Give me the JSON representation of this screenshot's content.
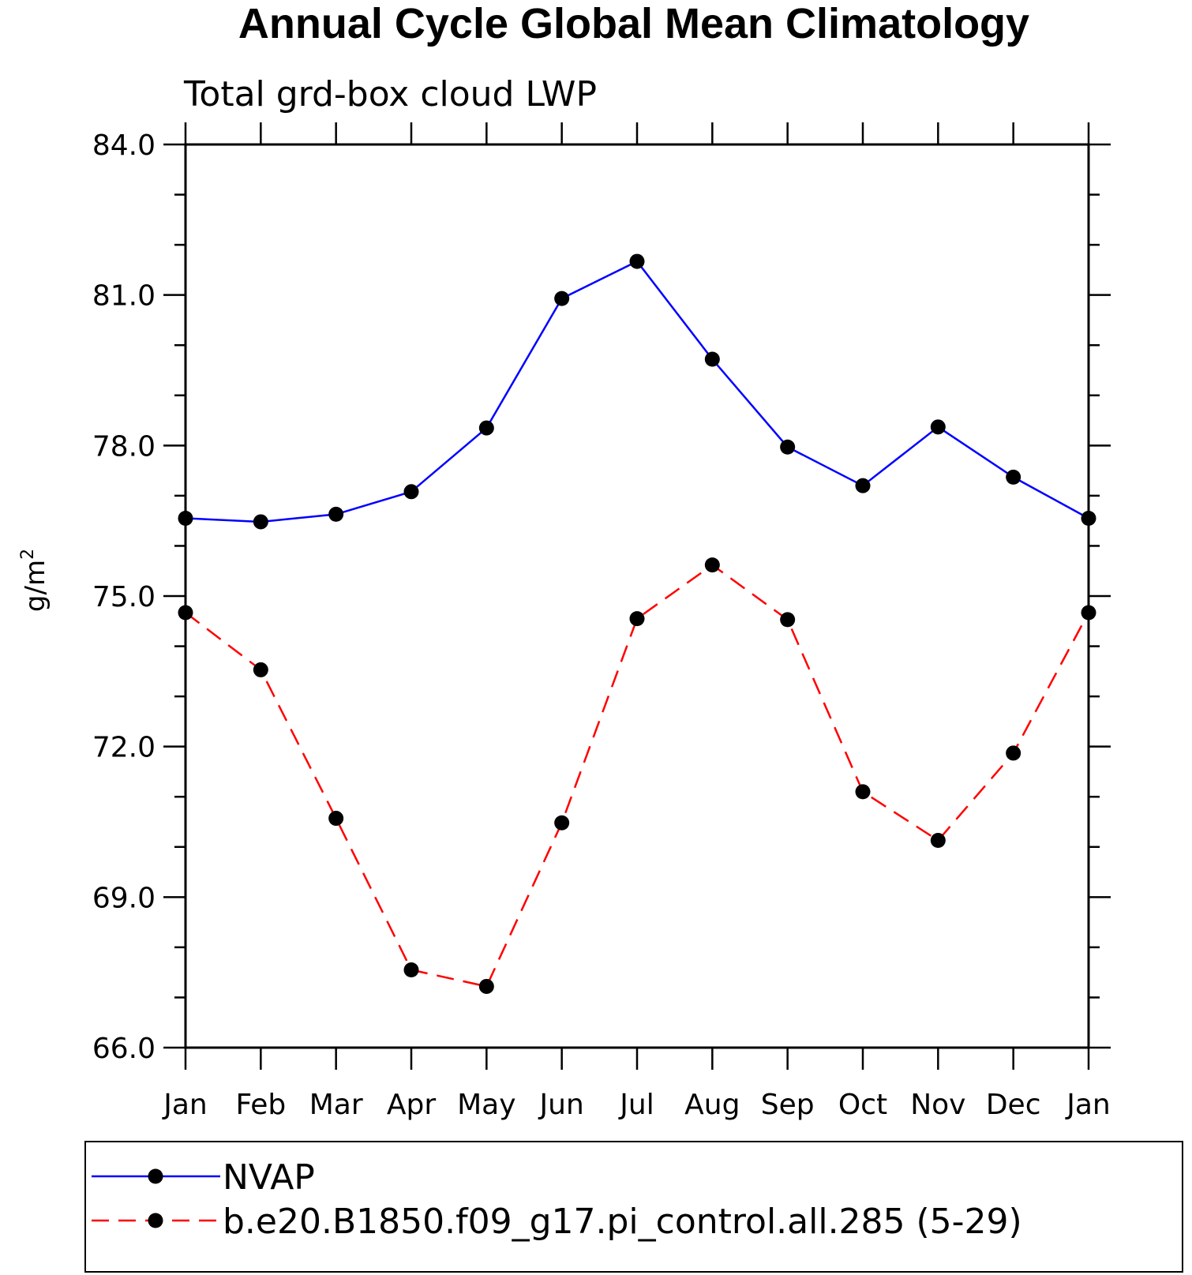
{
  "chart_data": {
    "type": "line",
    "title": "Annual Cycle Global Mean Climatology",
    "subtitle": "Total grd-box cloud LWP",
    "ylabel": "g/m",
    "ylabel_superscript": "2",
    "xlabel": "",
    "categories": [
      "Jan",
      "Feb",
      "Mar",
      "Apr",
      "May",
      "Jun",
      "Jul",
      "Aug",
      "Sep",
      "Oct",
      "Nov",
      "Dec",
      "Jan"
    ],
    "ylim": [
      66.0,
      84.0
    ],
    "yticks": [
      "66.0",
      "69.0",
      "72.0",
      "75.0",
      "78.0",
      "81.0",
      "84.0"
    ],
    "grid": false,
    "legend_position": "bottom",
    "series": [
      {
        "name": "NVAP",
        "color": "#0000ff",
        "dash": "solid",
        "marker": "filled-circle",
        "values": [
          76.55,
          76.48,
          76.63,
          77.08,
          78.35,
          80.93,
          81.67,
          79.72,
          77.97,
          77.2,
          78.37,
          77.37,
          76.55
        ]
      },
      {
        "name": "b.e20.B1850.f09_g17.pi_control.all.285 (5-29)",
        "color": "#ff0000",
        "dash": "dashed",
        "marker": "filled-circle",
        "values": [
          74.67,
          73.53,
          70.57,
          67.55,
          67.22,
          70.48,
          74.55,
          75.62,
          74.53,
          71.1,
          70.13,
          71.87,
          74.67
        ]
      }
    ]
  }
}
